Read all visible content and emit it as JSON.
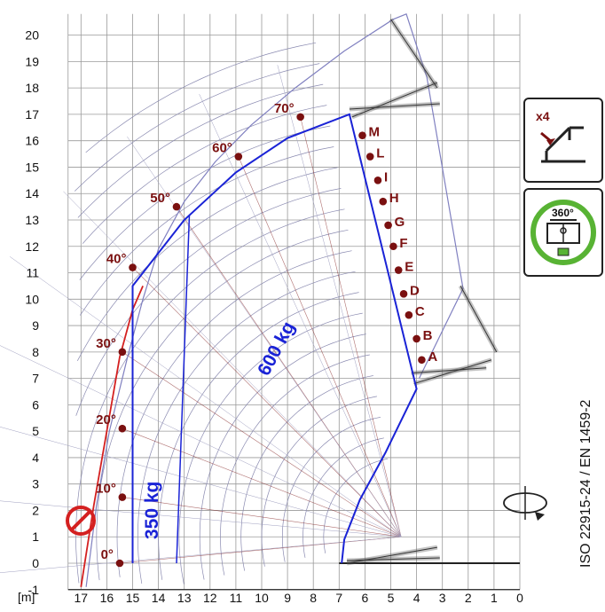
{
  "chart_data": {
    "type": "diagram",
    "y_axis_ticks": [
      "-1",
      "0",
      "1",
      "2",
      "3",
      "4",
      "5",
      "6",
      "7",
      "8",
      "9",
      "10",
      "11",
      "12",
      "13",
      "14",
      "15",
      "16",
      "17",
      "18",
      "19",
      "20"
    ],
    "x_axis_ticks": [
      "17",
      "16",
      "15",
      "14",
      "13",
      "12",
      "11",
      "10",
      "9",
      "8",
      "7",
      "6",
      "5",
      "4",
      "3",
      "2",
      "1",
      "0"
    ],
    "x_unit_label": "[m]",
    "xlim": [
      17.5,
      0
    ],
    "ylim": [
      -1,
      20.8
    ],
    "angle_marks": [
      {
        "label": "0°",
        "x": 15.5,
        "y": 0.0
      },
      {
        "label": "10°",
        "x": 15.4,
        "y": 2.5
      },
      {
        "label": "20°",
        "x": 15.4,
        "y": 5.1
      },
      {
        "label": "30°",
        "x": 15.4,
        "y": 8.0
      },
      {
        "label": "40°",
        "x": 15.0,
        "y": 11.2
      },
      {
        "label": "50°",
        "x": 13.3,
        "y": 13.5
      },
      {
        "label": "60°",
        "x": 10.9,
        "y": 15.4
      },
      {
        "label": "70°",
        "x": 8.5,
        "y": 16.9
      }
    ],
    "extension_marks": [
      {
        "label": "M",
        "x": 6.1,
        "y": 16.2
      },
      {
        "label": "L",
        "x": 5.8,
        "y": 15.4
      },
      {
        "label": "I",
        "x": 5.5,
        "y": 14.5
      },
      {
        "label": "H",
        "x": 5.3,
        "y": 13.7
      },
      {
        "label": "G",
        "x": 5.1,
        "y": 12.8
      },
      {
        "label": "F",
        "x": 4.9,
        "y": 12.0
      },
      {
        "label": "E",
        "x": 4.7,
        "y": 11.1
      },
      {
        "label": "D",
        "x": 4.5,
        "y": 10.2
      },
      {
        "label": "C",
        "x": 4.3,
        "y": 9.4
      },
      {
        "label": "B",
        "x": 4.0,
        "y": 8.5
      },
      {
        "label": "A",
        "x": 3.8,
        "y": 7.7
      }
    ],
    "load_zones": [
      {
        "label": "600 kg",
        "color": "#1a23d6"
      },
      {
        "label": "350 kg",
        "color": "#1a23d6"
      }
    ],
    "standards": "ISO 22915-24  / EN 1459-2",
    "badges": {
      "outrigger_count": "x4",
      "rotation": "360°"
    },
    "colors": {
      "grid": "#9a9a9a",
      "load_line": "#1a23d6",
      "limit_line": "#d42020",
      "marks": "#7a1010",
      "envelope": "#8080c0",
      "badge_ring": "#58b334"
    }
  }
}
